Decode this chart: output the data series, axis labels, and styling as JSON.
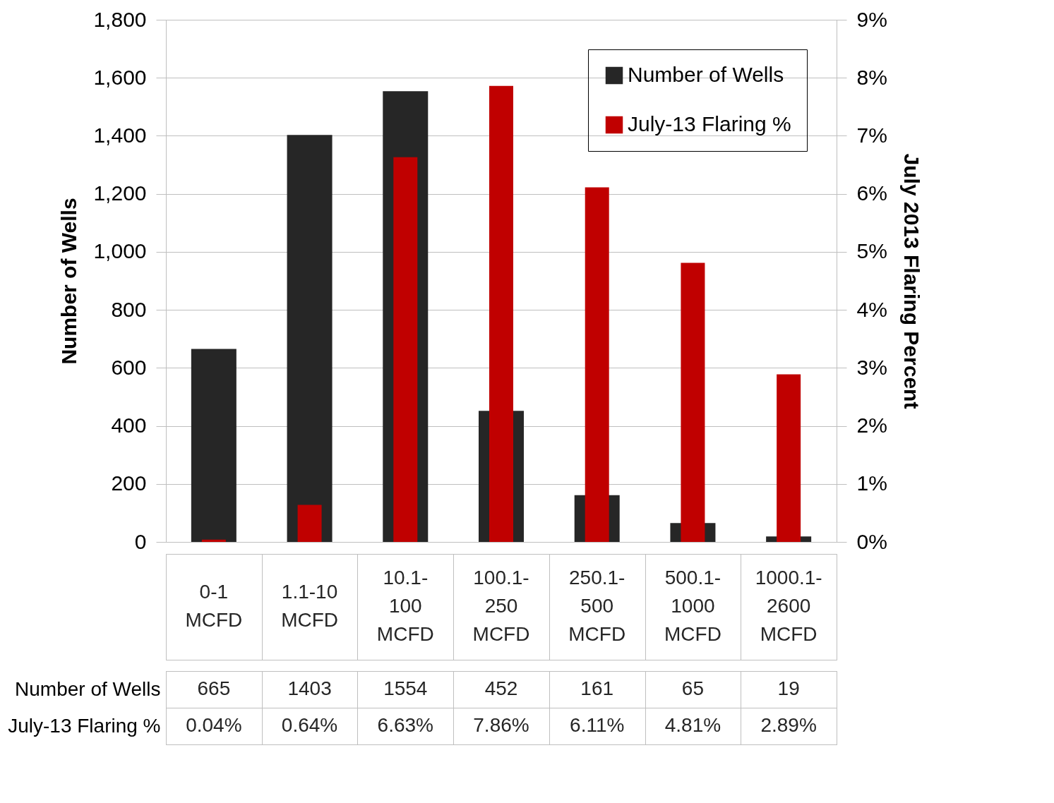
{
  "chart_data": {
    "type": "bar",
    "categories": [
      "0-1 MCFD",
      "1.1-10 MCFD",
      "10.1-100 MCFD",
      "100.1-250 MCFD",
      "250.1-500 MCFD",
      "500.1-1000 MCFD",
      "1000.1-2600 MCFD"
    ],
    "series": [
      {
        "name": "Number of Wells",
        "color": "#262626",
        "values": [
          665,
          1403,
          1554,
          452,
          161,
          65,
          19
        ],
        "value_labels": [
          "665",
          "1403",
          "1554",
          "452",
          "161",
          "65",
          "19"
        ]
      },
      {
        "name": "July-13 Flaring %",
        "color": "#c00000",
        "axis": "y2",
        "values": [
          0.04,
          0.64,
          6.63,
          7.86,
          6.11,
          4.81,
          2.89
        ],
        "value_labels": [
          "0.04%",
          "0.64%",
          "6.63%",
          "7.86%",
          "6.11%",
          "4.81%",
          "2.89%"
        ]
      }
    ],
    "ylabel": "Number of Wells",
    "y2label": "July 2013 Flaring Percent",
    "ylim": [
      0,
      1800
    ],
    "yticks": [
      0,
      200,
      400,
      600,
      800,
      {
        "value": 1000,
        "label": "1,000"
      },
      {
        "value": 1200,
        "label": "1,200"
      },
      {
        "value": 1400,
        "label": "1,400"
      },
      {
        "value": 1600,
        "label": "1,600"
      },
      {
        "value": 1800,
        "label": "1,800"
      }
    ],
    "y2lim": [
      0,
      9
    ],
    "y2ticks": [
      {
        "value": 0,
        "label": "0%"
      },
      {
        "value": 1,
        "label": "1%"
      },
      {
        "value": 2,
        "label": "2%"
      },
      {
        "value": 3,
        "label": "3%"
      },
      {
        "value": 4,
        "label": "4%"
      },
      {
        "value": 5,
        "label": "5%"
      },
      {
        "value": 6,
        "label": "6%"
      },
      {
        "value": 7,
        "label": "7%"
      },
      {
        "value": 8,
        "label": "8%"
      },
      {
        "value": 9,
        "label": "9%"
      }
    ],
    "grid": "y",
    "legend": "top right"
  }
}
